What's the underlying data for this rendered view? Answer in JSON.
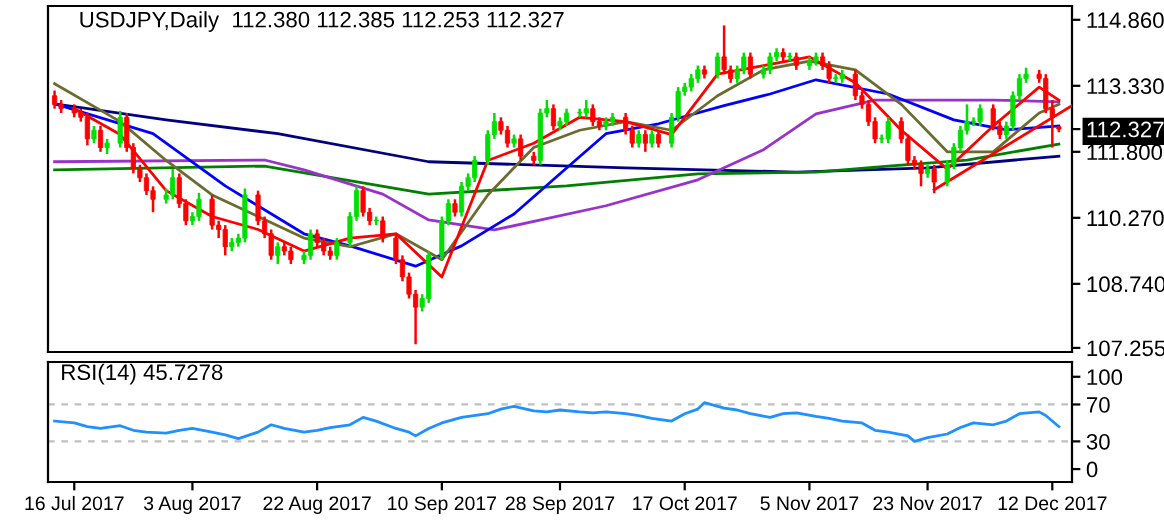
{
  "chart_data": [
    {
      "type": "candlestick",
      "title": "USDJPY,Daily  112.380 112.385 112.253 112.327",
      "tick_labels": "y",
      "grid": false,
      "legend": false,
      "x": [
        "2017-07-13",
        "2017-07-14",
        "2017-07-16",
        "2017-07-17",
        "2017-07-18",
        "2017-07-19",
        "2017-07-20",
        "2017-07-21",
        "2017-07-23",
        "2017-07-24",
        "2017-07-25",
        "2017-07-26",
        "2017-07-27",
        "2017-07-28",
        "2017-07-30",
        "2017-07-31",
        "2017-08-01",
        "2017-08-02",
        "2017-08-03",
        "2017-08-04",
        "2017-08-06",
        "2017-08-07",
        "2017-08-08",
        "2017-08-09",
        "2017-08-10",
        "2017-08-11",
        "2017-08-13",
        "2017-08-14",
        "2017-08-15",
        "2017-08-16",
        "2017-08-17",
        "2017-08-18",
        "2017-08-20",
        "2017-08-21",
        "2017-08-22",
        "2017-08-23",
        "2017-08-24",
        "2017-08-25",
        "2017-08-27",
        "2017-08-28",
        "2017-08-29",
        "2017-08-30",
        "2017-08-31",
        "2017-09-01",
        "2017-09-03",
        "2017-09-04",
        "2017-09-05",
        "2017-09-06",
        "2017-09-07",
        "2017-09-08",
        "2017-09-10",
        "2017-09-11",
        "2017-09-12",
        "2017-09-13",
        "2017-09-14",
        "2017-09-15",
        "2017-09-17",
        "2017-09-18",
        "2017-09-19",
        "2017-09-20",
        "2017-09-21",
        "2017-09-22",
        "2017-09-24",
        "2017-09-25",
        "2017-09-26",
        "2017-09-27",
        "2017-09-28",
        "2017-09-29",
        "2017-10-01",
        "2017-10-02",
        "2017-10-03",
        "2017-10-04",
        "2017-10-05",
        "2017-10-06",
        "2017-10-08",
        "2017-10-09",
        "2017-10-10",
        "2017-10-11",
        "2017-10-12",
        "2017-10-13",
        "2017-10-15",
        "2017-10-16",
        "2017-10-17",
        "2017-10-18",
        "2017-10-19",
        "2017-10-20",
        "2017-10-22",
        "2017-10-23",
        "2017-10-24",
        "2017-10-25",
        "2017-10-26",
        "2017-10-27",
        "2017-10-29",
        "2017-10-30",
        "2017-10-31",
        "2017-11-01",
        "2017-11-02",
        "2017-11-03",
        "2017-11-05",
        "2017-11-06",
        "2017-11-07",
        "2017-11-08",
        "2017-11-09",
        "2017-11-10",
        "2017-11-12",
        "2017-11-13",
        "2017-11-14",
        "2017-11-15",
        "2017-11-16",
        "2017-11-17",
        "2017-11-19",
        "2017-11-20",
        "2017-11-21",
        "2017-11-22",
        "2017-11-23",
        "2017-11-24",
        "2017-11-26",
        "2017-11-27",
        "2017-11-28",
        "2017-11-29",
        "2017-11-30",
        "2017-12-01",
        "2017-12-03",
        "2017-12-04",
        "2017-12-05",
        "2017-12-06",
        "2017-12-07",
        "2017-12-08",
        "2017-12-10",
        "2017-12-11",
        "2017-12-12",
        "2017-12-13"
      ],
      "ohlc": [
        [
          113.1,
          113.22,
          112.8,
          112.9
        ],
        [
          112.9,
          113.0,
          112.7,
          112.8
        ],
        [
          112.8,
          112.9,
          112.6,
          112.7
        ],
        [
          112.7,
          112.8,
          112.5,
          112.6
        ],
        [
          112.6,
          112.7,
          111.95,
          112.1
        ],
        [
          112.1,
          112.4,
          112.0,
          112.3
        ],
        [
          112.3,
          112.4,
          111.8,
          111.9
        ],
        [
          111.9,
          112.1,
          111.75,
          112.0
        ],
        [
          112.0,
          112.75,
          111.9,
          112.6
        ],
        [
          112.6,
          112.7,
          111.8,
          111.9
        ],
        [
          111.9,
          112.0,
          111.3,
          111.4
        ],
        [
          111.4,
          111.5,
          111.1,
          111.2
        ],
        [
          111.2,
          111.3,
          110.8,
          110.9
        ],
        [
          110.9,
          111.0,
          110.4,
          110.7
        ],
        [
          110.7,
          110.95,
          110.6,
          110.8
        ],
        [
          110.8,
          111.4,
          110.7,
          111.2
        ],
        [
          111.2,
          111.3,
          110.5,
          110.6
        ],
        [
          110.6,
          110.7,
          110.1,
          110.2
        ],
        [
          110.2,
          110.4,
          110.1,
          110.3
        ],
        [
          110.3,
          110.85,
          110.2,
          110.7
        ],
        [
          110.7,
          110.8,
          110.0,
          110.1
        ],
        [
          110.1,
          110.2,
          109.8,
          110.0
        ],
        [
          110.0,
          110.1,
          109.4,
          109.6
        ],
        [
          109.6,
          109.8,
          109.5,
          109.7
        ],
        [
          109.7,
          109.9,
          109.6,
          109.8
        ],
        [
          109.8,
          110.95,
          109.7,
          110.8
        ],
        [
          110.8,
          110.9,
          110.1,
          110.2
        ],
        [
          110.2,
          110.3,
          109.8,
          109.9
        ],
        [
          109.9,
          110.0,
          109.3,
          109.4
        ],
        [
          109.4,
          109.7,
          109.2,
          109.6
        ],
        [
          109.6,
          109.7,
          109.4,
          109.5
        ],
        [
          109.5,
          109.6,
          109.2,
          109.3
        ],
        [
          109.3,
          109.5,
          109.2,
          109.4
        ],
        [
          109.4,
          110.0,
          109.3,
          109.9
        ],
        [
          109.9,
          110.0,
          109.6,
          109.7
        ],
        [
          109.7,
          109.8,
          109.4,
          109.5
        ],
        [
          109.5,
          109.6,
          109.3,
          109.4
        ],
        [
          109.4,
          109.8,
          109.3,
          109.7
        ],
        [
          109.7,
          110.4,
          109.6,
          110.3
        ],
        [
          110.3,
          111.0,
          110.2,
          110.9
        ],
        [
          110.9,
          111.0,
          110.3,
          110.4
        ],
        [
          110.4,
          110.5,
          110.1,
          110.2
        ],
        [
          110.2,
          110.3,
          110.1,
          110.2
        ],
        [
          110.2,
          110.3,
          109.7,
          109.8
        ],
        [
          109.8,
          109.9,
          109.2,
          109.3
        ],
        [
          109.3,
          109.4,
          108.8,
          108.9
        ],
        [
          108.9,
          109.0,
          108.4,
          108.5
        ],
        [
          108.5,
          108.6,
          107.34,
          108.2
        ],
        [
          108.2,
          108.5,
          108.1,
          108.4
        ],
        [
          108.4,
          109.5,
          108.3,
          109.4
        ],
        [
          109.4,
          110.3,
          109.3,
          110.2
        ],
        [
          110.2,
          110.7,
          110.1,
          110.6
        ],
        [
          110.6,
          110.7,
          110.3,
          110.4
        ],
        [
          110.4,
          111.1,
          110.3,
          111.0
        ],
        [
          111.0,
          111.3,
          110.9,
          111.2
        ],
        [
          111.2,
          111.7,
          111.1,
          111.6
        ],
        [
          111.6,
          112.3,
          111.5,
          112.2
        ],
        [
          112.2,
          112.7,
          112.1,
          112.5
        ],
        [
          112.5,
          112.6,
          112.2,
          112.3
        ],
        [
          112.3,
          112.4,
          111.9,
          112.0
        ],
        [
          112.0,
          112.2,
          111.9,
          112.1
        ],
        [
          112.1,
          112.2,
          111.6,
          111.7
        ],
        [
          111.7,
          111.8,
          111.5,
          111.6
        ],
        [
          111.6,
          112.8,
          111.5,
          112.7
        ],
        [
          112.7,
          113.0,
          112.6,
          112.8
        ],
        [
          112.8,
          112.9,
          112.3,
          112.4
        ],
        [
          112.4,
          112.6,
          112.3,
          112.5
        ],
        [
          112.5,
          112.8,
          112.4,
          112.7
        ],
        [
          112.7,
          112.8,
          112.6,
          112.7
        ],
        [
          112.7,
          113.0,
          112.6,
          112.8
        ],
        [
          112.8,
          112.9,
          112.4,
          112.5
        ],
        [
          112.5,
          112.6,
          112.3,
          112.4
        ],
        [
          112.4,
          112.6,
          112.3,
          112.5
        ],
        [
          112.5,
          112.7,
          112.4,
          112.6
        ],
        [
          112.6,
          112.7,
          112.2,
          112.3
        ],
        [
          112.3,
          112.4,
          111.9,
          112.0
        ],
        [
          112.0,
          112.3,
          111.9,
          112.2
        ],
        [
          112.2,
          112.3,
          111.8,
          112.0
        ],
        [
          112.0,
          112.3,
          111.9,
          112.2
        ],
        [
          112.2,
          112.3,
          111.9,
          112.0
        ],
        [
          112.0,
          112.7,
          111.9,
          112.6
        ],
        [
          112.6,
          113.3,
          112.5,
          113.2
        ],
        [
          113.2,
          113.4,
          113.1,
          113.3
        ],
        [
          113.3,
          113.6,
          113.2,
          113.5
        ],
        [
          113.5,
          113.8,
          113.4,
          113.7
        ],
        [
          113.7,
          113.8,
          113.5,
          113.6
        ],
        [
          113.6,
          114.1,
          113.5,
          114.0
        ],
        [
          114.0,
          114.73,
          113.6,
          113.7
        ],
        [
          113.7,
          113.8,
          113.4,
          113.5
        ],
        [
          113.5,
          113.8,
          113.4,
          113.7
        ],
        [
          113.7,
          114.1,
          113.6,
          114.0
        ],
        [
          114.0,
          114.1,
          113.5,
          113.6
        ],
        [
          113.6,
          113.8,
          113.5,
          113.7
        ],
        [
          113.7,
          114.1,
          113.6,
          114.0
        ],
        [
          114.0,
          114.2,
          113.9,
          114.1
        ],
        [
          114.1,
          114.2,
          113.9,
          114.0
        ],
        [
          114.0,
          114.1,
          113.9,
          114.0
        ],
        [
          114.0,
          114.1,
          113.7,
          113.8
        ],
        [
          113.8,
          114.0,
          113.7,
          113.9
        ],
        [
          113.9,
          114.1,
          113.8,
          114.0
        ],
        [
          114.0,
          114.1,
          113.7,
          113.8
        ],
        [
          113.8,
          113.9,
          113.4,
          113.5
        ],
        [
          113.5,
          113.6,
          113.4,
          113.5
        ],
        [
          113.5,
          113.7,
          113.4,
          113.6
        ],
        [
          113.6,
          113.7,
          113.0,
          113.1
        ],
        [
          113.1,
          113.2,
          112.8,
          112.9
        ],
        [
          112.9,
          113.0,
          112.4,
          112.5
        ],
        [
          112.5,
          112.6,
          112.0,
          112.1
        ],
        [
          112.1,
          112.2,
          112.0,
          112.1
        ],
        [
          112.1,
          112.6,
          112.0,
          112.5
        ],
        [
          112.5,
          112.6,
          112.0,
          112.1
        ],
        [
          112.1,
          112.2,
          111.5,
          111.6
        ],
        [
          111.6,
          111.7,
          111.4,
          111.5
        ],
        [
          111.5,
          111.6,
          111.0,
          111.3
        ],
        [
          111.3,
          111.5,
          111.2,
          111.4
        ],
        [
          111.4,
          111.5,
          110.84,
          111.1
        ],
        [
          111.1,
          111.6,
          111.0,
          111.5
        ],
        [
          111.5,
          112.0,
          111.4,
          111.9
        ],
        [
          111.9,
          112.4,
          111.8,
          112.3
        ],
        [
          112.3,
          112.9,
          112.2,
          112.5
        ],
        [
          112.5,
          112.6,
          112.4,
          112.5
        ],
        [
          112.5,
          112.9,
          112.4,
          112.8
        ],
        [
          112.8,
          112.9,
          112.3,
          112.4
        ],
        [
          112.4,
          112.5,
          112.1,
          112.2
        ],
        [
          112.2,
          112.5,
          112.1,
          112.4
        ],
        [
          112.4,
          113.2,
          112.3,
          113.1
        ],
        [
          113.1,
          113.6,
          113.0,
          113.5
        ],
        [
          113.5,
          113.75,
          113.4,
          113.6
        ],
        [
          113.6,
          113.7,
          113.4,
          113.5
        ],
        [
          113.5,
          113.6,
          112.7,
          112.8
        ],
        [
          112.8,
          113.0,
          111.9,
          112.6
        ],
        [
          112.38,
          112.385,
          112.253,
          112.327
        ]
      ],
      "series": [
        {
          "type": "line",
          "color": "#000080",
          "x": [
            "2017-07-13",
            "2017-07-30",
            "2017-08-16",
            "2017-09-08",
            "2017-10-08",
            "2017-11-03",
            "2017-11-23",
            "2017-12-13"
          ],
          "values": [
            112.91,
            112.54,
            112.22,
            111.57,
            111.43,
            111.33,
            111.43,
            111.7
          ]
        },
        {
          "type": "line",
          "color": "#008000",
          "x": [
            "2017-07-13",
            "2017-08-14",
            "2017-09-08",
            "2017-09-29",
            "2017-10-19",
            "2017-11-06",
            "2017-11-17",
            "2017-11-29",
            "2017-12-13"
          ],
          "values": [
            111.38,
            111.47,
            110.82,
            111.01,
            111.29,
            111.33,
            111.47,
            111.61,
            111.98
          ]
        },
        {
          "type": "line",
          "color": "#9932cc",
          "x": [
            "2017-07-13",
            "2017-08-14",
            "2017-08-20",
            "2017-09-01",
            "2017-09-08",
            "2017-09-18",
            "2017-10-05",
            "2017-10-19",
            "2017-10-29",
            "2017-11-06",
            "2017-11-15",
            "2017-12-03",
            "2017-12-13"
          ],
          "values": [
            111.57,
            111.61,
            111.38,
            110.82,
            110.22,
            109.99,
            110.55,
            111.15,
            111.85,
            112.68,
            113.0,
            113.0,
            112.96
          ]
        },
        {
          "type": "line",
          "color": "#0000ff",
          "x": [
            "2017-07-13",
            "2017-07-28",
            "2017-08-08",
            "2017-08-20",
            "2017-08-27",
            "2017-09-06",
            "2017-09-13",
            "2017-09-21",
            "2017-09-28",
            "2017-10-05",
            "2017-10-13",
            "2017-10-23",
            "2017-10-30",
            "2017-11-06",
            "2017-11-17",
            "2017-11-27",
            "2017-12-05",
            "2017-12-13"
          ],
          "values": [
            112.91,
            112.22,
            111.01,
            109.9,
            109.62,
            109.15,
            109.62,
            110.36,
            111.29,
            112.22,
            112.45,
            112.87,
            113.14,
            113.47,
            113.14,
            112.54,
            112.31,
            112.4
          ]
        },
        {
          "type": "line",
          "color": "#6b6b2f",
          "x": [
            "2017-07-13",
            "2017-07-23",
            "2017-07-30",
            "2017-08-06",
            "2017-08-13",
            "2017-08-20",
            "2017-08-27",
            "2017-09-03",
            "2017-09-10",
            "2017-09-17",
            "2017-09-24",
            "2017-10-01",
            "2017-10-08",
            "2017-10-15",
            "2017-10-22",
            "2017-10-29",
            "2017-11-05",
            "2017-11-12",
            "2017-11-19",
            "2017-11-26",
            "2017-12-03",
            "2017-12-10",
            "2017-12-13"
          ],
          "values": [
            113.38,
            112.5,
            111.6,
            110.8,
            110.3,
            109.8,
            109.6,
            109.9,
            109.3,
            110.8,
            111.9,
            112.3,
            112.5,
            112.3,
            113.1,
            113.7,
            113.9,
            113.7,
            112.9,
            111.8,
            111.8,
            112.7,
            112.9
          ]
        },
        {
          "type": "line",
          "color": "#ff0000",
          "x": [
            "2017-07-16",
            "2017-07-23",
            "2017-07-30",
            "2017-08-06",
            "2017-08-13",
            "2017-08-20",
            "2017-08-27",
            "2017-09-03",
            "2017-09-10",
            "2017-09-17",
            "2017-09-24",
            "2017-10-01",
            "2017-10-08",
            "2017-10-15",
            "2017-10-22",
            "2017-10-29",
            "2017-11-05",
            "2017-11-12",
            "2017-11-19",
            "2017-11-26",
            "2017-12-03",
            "2017-12-10",
            "2017-12-13"
          ],
          "values": [
            112.8,
            112.2,
            110.9,
            110.3,
            110.0,
            109.5,
            109.8,
            109.9,
            108.9,
            111.6,
            112.0,
            112.6,
            112.5,
            112.2,
            113.6,
            113.8,
            114.0,
            113.4,
            112.3,
            111.4,
            112.4,
            113.3,
            113.0
          ]
        },
        {
          "type": "line",
          "color": "#ff0000",
          "x": [
            "2017-11-24",
            "2017-12-15"
          ],
          "values": [
            110.92,
            112.87
          ]
        }
      ],
      "xlim": [
        "2017-07-12",
        "2017-12-15"
      ],
      "ylim": [
        107.16,
        115.18
      ],
      "yticks": [
        {
          "value": 107.255,
          "label": "107.255"
        },
        {
          "value": 108.74,
          "label": "108.740"
        },
        {
          "value": 110.27,
          "label": "110.270"
        },
        {
          "value": 111.8,
          "label": "111.800"
        },
        {
          "value": 112.327,
          "label": "112.327"
        },
        {
          "value": 113.33,
          "label": "113.330"
        },
        {
          "value": 114.86,
          "label": "114.860"
        }
      ]
    },
    {
      "type": "line",
      "title": "RSI(14) 45.7278",
      "grid": false,
      "legend": false,
      "series": [
        {
          "type": "line",
          "color": "#1e90ff",
          "x": [
            "2017-07-13",
            "2017-07-16",
            "2017-07-18",
            "2017-07-20",
            "2017-07-23",
            "2017-07-25",
            "2017-07-27",
            "2017-07-30",
            "2017-08-01",
            "2017-08-03",
            "2017-08-06",
            "2017-08-08",
            "2017-08-10",
            "2017-08-13",
            "2017-08-15",
            "2017-08-17",
            "2017-08-20",
            "2017-08-22",
            "2017-08-24",
            "2017-08-27",
            "2017-08-29",
            "2017-08-31",
            "2017-09-03",
            "2017-09-05",
            "2017-09-06",
            "2017-09-08",
            "2017-09-10",
            "2017-09-13",
            "2017-09-17",
            "2017-09-19",
            "2017-09-21",
            "2017-09-24",
            "2017-09-26",
            "2017-09-28",
            "2017-10-01",
            "2017-10-03",
            "2017-10-05",
            "2017-10-08",
            "2017-10-10",
            "2017-10-12",
            "2017-10-15",
            "2017-10-17",
            "2017-10-19",
            "2017-10-20",
            "2017-10-23",
            "2017-10-25",
            "2017-10-27",
            "2017-10-30",
            "2017-11-01",
            "2017-11-03",
            "2017-11-06",
            "2017-11-08",
            "2017-11-10",
            "2017-11-13",
            "2017-11-15",
            "2017-11-17",
            "2017-11-20",
            "2017-11-21",
            "2017-11-23",
            "2017-11-26",
            "2017-11-28",
            "2017-11-30",
            "2017-12-03",
            "2017-12-05",
            "2017-12-07",
            "2017-12-10",
            "2017-12-11",
            "2017-12-13"
          ],
          "values": [
            52,
            50,
            46,
            44,
            47,
            42,
            40,
            39,
            42,
            44,
            40,
            37,
            33,
            40,
            48,
            44,
            40,
            42,
            45,
            48,
            56,
            52,
            44,
            40,
            36,
            44,
            50,
            56,
            60,
            65,
            68,
            63,
            62,
            64,
            62,
            61,
            62,
            60,
            58,
            55,
            52,
            60,
            65,
            72,
            66,
            64,
            60,
            56,
            60,
            61,
            57,
            55,
            52,
            50,
            42,
            40,
            36,
            30,
            34,
            38,
            45,
            50,
            48,
            52,
            60,
            62,
            58,
            46
          ]
        }
      ],
      "xlim": [
        "2017-07-12",
        "2017-12-15"
      ],
      "ylim": [
        -14,
        116
      ],
      "yticks": [
        0,
        30,
        70,
        100
      ],
      "xticks": [
        {
          "value": "2017-07-16",
          "label": "16 Jul 2017"
        },
        {
          "value": "2017-08-03",
          "label": "3 Aug 2017"
        },
        {
          "value": "2017-08-22",
          "label": "22 Aug 2017"
        },
        {
          "value": "2017-09-10",
          "label": "10 Sep 2017"
        },
        {
          "value": "2017-09-28",
          "label": "28 Sep 2017"
        },
        {
          "value": "2017-10-17",
          "label": "17 Oct 2017"
        },
        {
          "value": "2017-11-05",
          "label": "5 Nov 2017"
        },
        {
          "value": "2017-11-23",
          "label": "23 Nov 2017"
        },
        {
          "value": "2017-12-12",
          "label": "12 Dec 2017"
        }
      ],
      "ref_lines": [
        {
          "axis": "y",
          "value": 70,
          "color": "#c0c0c0",
          "line_style": "dashed"
        },
        {
          "axis": "y",
          "value": 30,
          "color": "#c0c0c0",
          "line_style": "dashed"
        }
      ]
    }
  ]
}
